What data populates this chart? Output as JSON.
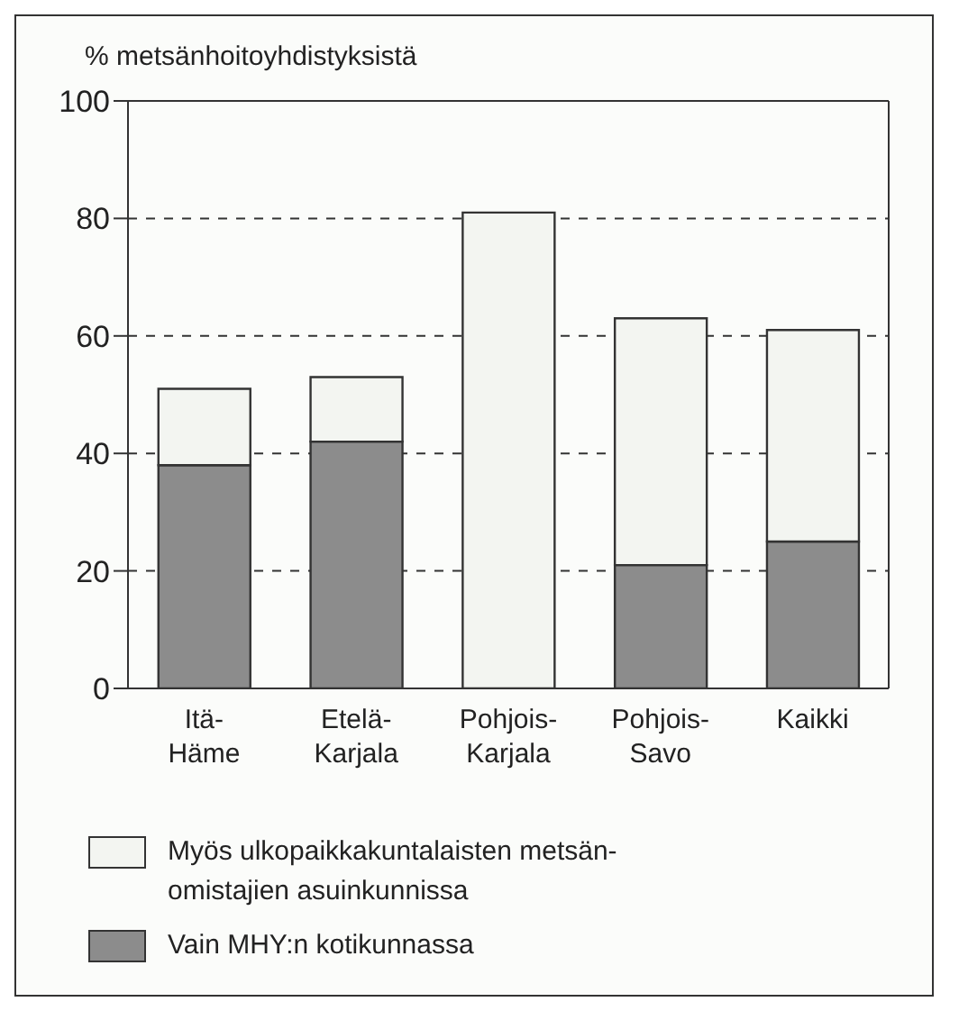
{
  "chart_data": {
    "type": "bar",
    "ylabel": "% metsänhoitoyhdistyksistä",
    "categories": [
      "Itä-\nHäme",
      "Etelä-\nKarjala",
      "Pohjois-\nKarjala",
      "Pohjois-\nSavo",
      "Kaikki"
    ],
    "stacked": true,
    "series": [
      {
        "name": "Vain MHY:n kotikunnassa",
        "color": "#8c8c8c",
        "values": [
          38,
          42,
          0,
          21,
          25
        ]
      },
      {
        "name": "Myös ulkopaikkakuntalaisten metsän-\nomistajien asuinkunnissa",
        "color": "#f3f5f1",
        "values": [
          13,
          11,
          81,
          42,
          36
        ]
      }
    ],
    "ylim": [
      0,
      100
    ],
    "yticks": [
      0,
      20,
      40,
      60,
      80,
      100
    ],
    "grid": "y",
    "legend": "bottom"
  }
}
